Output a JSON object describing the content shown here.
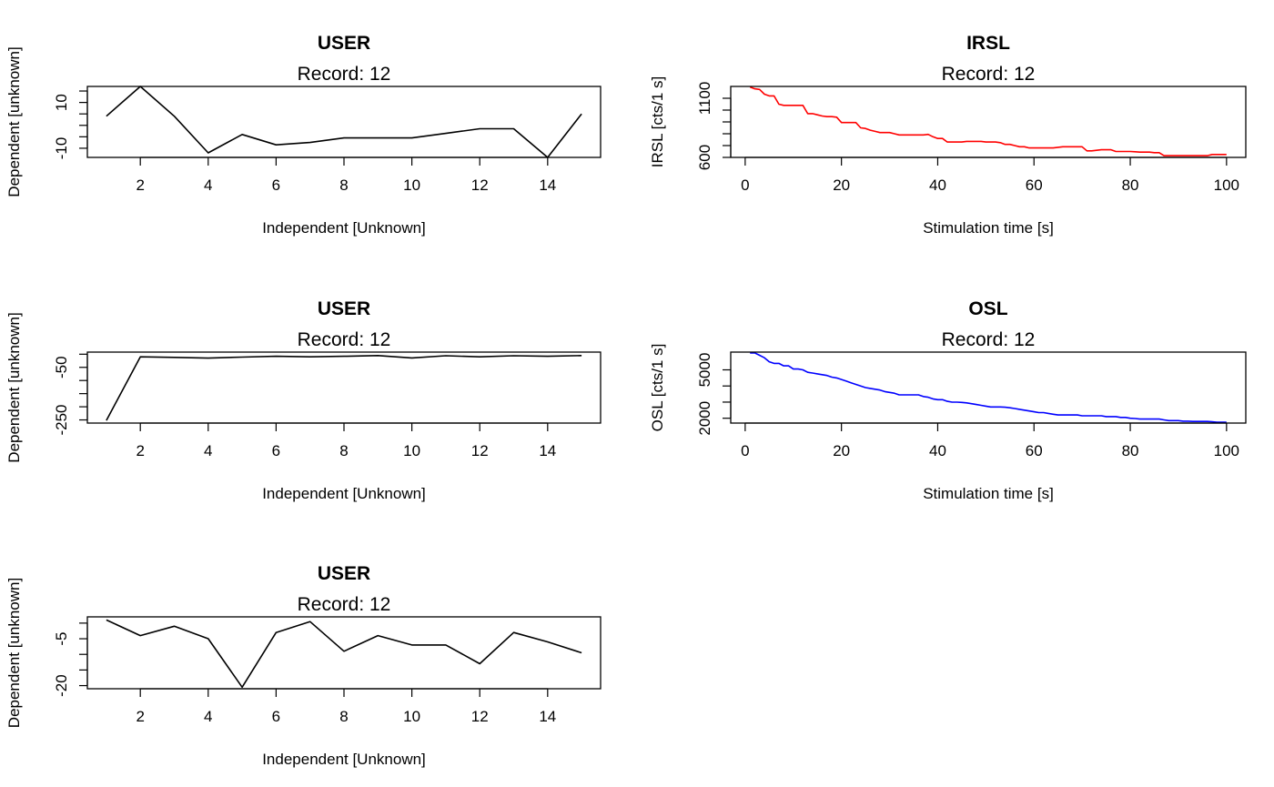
{
  "chart_data": [
    {
      "type": "line",
      "title": "USER",
      "subtitle": "Record: 12",
      "xlabel": "Independent [Unknown]",
      "ylabel": "Dependent [unknown]",
      "xlim": [
        0.44,
        15.56
      ],
      "ylim": [
        -14,
        17
      ],
      "xticks": [
        2,
        4,
        6,
        8,
        10,
        12,
        14
      ],
      "yticks": [
        -10,
        -5,
        0,
        5,
        10,
        15
      ],
      "yticklabels": [
        "-10",
        "",
        "",
        "",
        "10",
        ""
      ],
      "color": "#000000",
      "x": [
        1,
        2,
        3,
        4,
        5,
        6,
        7,
        8,
        9,
        10,
        11,
        12,
        13,
        14,
        15
      ],
      "y": [
        4,
        17,
        4,
        -12,
        -4,
        -8.5,
        -7.5,
        -5.5,
        -5.5,
        -5.5,
        -3.5,
        -1.5,
        -1.5,
        -14,
        5
      ]
    },
    {
      "type": "line",
      "title": "IRSL",
      "subtitle": "Record: 12",
      "xlabel": "Stimulation time [s]",
      "ylabel": "IRSL [cts/1 s]",
      "xlim": [
        -3,
        104
      ],
      "ylim": [
        600,
        1200
      ],
      "xticks": [
        0,
        20,
        40,
        60,
        80,
        100
      ],
      "yticks": [
        600,
        700,
        800,
        900,
        1000,
        1100
      ],
      "yticklabels": [
        "600",
        "",
        "",
        "",
        "",
        "1100"
      ],
      "color": "#ff0000",
      "x": [
        1,
        2,
        3,
        4,
        5,
        6,
        7,
        8,
        9,
        10,
        11,
        12,
        13,
        14,
        15,
        16,
        17,
        18,
        19,
        20,
        21,
        22,
        23,
        24,
        25,
        26,
        27,
        28,
        29,
        30,
        31,
        32,
        33,
        34,
        35,
        36,
        37,
        38,
        39,
        40,
        41,
        42,
        43,
        44,
        45,
        46,
        47,
        48,
        49,
        50,
        51,
        52,
        53,
        54,
        55,
        56,
        57,
        58,
        59,
        60,
        61,
        62,
        63,
        64,
        65,
        66,
        67,
        68,
        69,
        70,
        71,
        72,
        73,
        74,
        75,
        76,
        77,
        78,
        79,
        80,
        81,
        82,
        83,
        84,
        85,
        86,
        87,
        88,
        89,
        90,
        91,
        92,
        93,
        94,
        95,
        96,
        97,
        98,
        99,
        100
      ],
      "y": [
        1195,
        1180,
        1175,
        1135,
        1120,
        1120,
        1050,
        1040,
        1040,
        1040,
        1040,
        1040,
        970,
        970,
        960,
        950,
        945,
        945,
        940,
        895,
        895,
        895,
        895,
        850,
        845,
        830,
        820,
        810,
        810,
        810,
        800,
        790,
        790,
        790,
        790,
        790,
        790,
        795,
        775,
        760,
        760,
        730,
        730,
        730,
        730,
        735,
        735,
        735,
        735,
        730,
        730,
        730,
        725,
        710,
        710,
        700,
        690,
        690,
        680,
        680,
        680,
        680,
        680,
        680,
        685,
        690,
        690,
        690,
        690,
        690,
        655,
        655,
        660,
        665,
        665,
        665,
        650,
        650,
        650,
        650,
        648,
        645,
        645,
        645,
        640,
        640,
        615,
        615,
        615,
        615,
        615,
        615,
        615,
        615,
        615,
        615,
        625,
        625,
        625,
        625
      ]
    },
    {
      "type": "line",
      "title": "USER",
      "subtitle": "Record: 12",
      "xlabel": "Independent [Unknown]",
      "ylabel": "Dependent [unknown]",
      "xlim": [
        0.44,
        15.56
      ],
      "ylim": [
        -262,
        8
      ],
      "xticks": [
        2,
        4,
        6,
        8,
        10,
        12,
        14
      ],
      "yticks": [
        -250,
        -200,
        -150,
        -100,
        -50,
        0
      ],
      "yticklabels": [
        "-250",
        "",
        "",
        "",
        "-50",
        ""
      ],
      "color": "#000000",
      "x": [
        1,
        2,
        3,
        4,
        5,
        6,
        7,
        8,
        9,
        10,
        11,
        12,
        13,
        14,
        15
      ],
      "y": [
        -252,
        -10,
        -12,
        -15,
        -11,
        -8,
        -10,
        -8,
        -5,
        -14,
        -6,
        -10,
        -6,
        -8,
        -5
      ]
    },
    {
      "type": "line",
      "title": "OSL",
      "subtitle": "Record: 12",
      "xlabel": "Stimulation time [s]",
      "ylabel": "OSL [cts/1 s]",
      "xlim": [
        -3,
        104
      ],
      "ylim": [
        1700,
        6100
      ],
      "xticks": [
        0,
        20,
        40,
        60,
        80,
        100
      ],
      "yticks": [
        2000,
        3000,
        4000,
        5000
      ],
      "yticklabels": [
        "2000",
        "",
        "",
        "5000"
      ],
      "color": "#0000ff",
      "x": [
        1,
        2,
        3,
        4,
        5,
        6,
        7,
        8,
        9,
        10,
        11,
        12,
        13,
        14,
        15,
        16,
        17,
        18,
        19,
        20,
        21,
        22,
        23,
        24,
        25,
        26,
        27,
        28,
        29,
        30,
        31,
        32,
        33,
        34,
        35,
        36,
        37,
        38,
        39,
        40,
        41,
        42,
        43,
        44,
        45,
        46,
        47,
        48,
        49,
        50,
        51,
        52,
        53,
        54,
        55,
        56,
        57,
        58,
        59,
        60,
        61,
        62,
        63,
        64,
        65,
        66,
        67,
        68,
        69,
        70,
        71,
        72,
        73,
        74,
        75,
        76,
        77,
        78,
        79,
        80,
        81,
        82,
        83,
        84,
        85,
        86,
        87,
        88,
        89,
        90,
        91,
        92,
        93,
        94,
        95,
        96,
        97,
        98,
        99,
        100
      ],
      "y": [
        6050,
        6050,
        5900,
        5750,
        5500,
        5400,
        5400,
        5250,
        5250,
        5050,
        5050,
        5000,
        4850,
        4800,
        4750,
        4700,
        4650,
        4550,
        4500,
        4400,
        4300,
        4200,
        4100,
        4000,
        3900,
        3850,
        3800,
        3750,
        3650,
        3600,
        3550,
        3450,
        3450,
        3450,
        3450,
        3450,
        3350,
        3300,
        3200,
        3150,
        3150,
        3050,
        3000,
        3000,
        2980,
        2950,
        2900,
        2850,
        2800,
        2750,
        2700,
        2700,
        2700,
        2680,
        2650,
        2600,
        2550,
        2500,
        2450,
        2400,
        2350,
        2350,
        2300,
        2250,
        2200,
        2200,
        2200,
        2200,
        2200,
        2150,
        2150,
        2150,
        2150,
        2150,
        2100,
        2100,
        2100,
        2050,
        2050,
        2000,
        1980,
        1950,
        1950,
        1950,
        1950,
        1950,
        1900,
        1850,
        1850,
        1850,
        1820,
        1820,
        1800,
        1800,
        1800,
        1800,
        1780,
        1750,
        1750,
        1750
      ]
    },
    {
      "type": "line",
      "title": "USER",
      "subtitle": "Record: 12",
      "xlabel": "Independent [Unknown]",
      "ylabel": "Dependent [unknown]",
      "xlim": [
        0.44,
        15.56
      ],
      "ylim": [
        -21,
        2
      ],
      "xticks": [
        2,
        4,
        6,
        8,
        10,
        12,
        14
      ],
      "yticks": [
        -20,
        -15,
        -10,
        -5,
        0
      ],
      "yticklabels": [
        "-20",
        "",
        "",
        "-5",
        ""
      ],
      "color": "#000000",
      "x": [
        1,
        2,
        3,
        4,
        5,
        6,
        7,
        8,
        9,
        10,
        11,
        12,
        13,
        14,
        15
      ],
      "y": [
        1,
        -4,
        -1,
        -5,
        -20.5,
        -3,
        0.5,
        -9,
        -4,
        -7,
        -7,
        -13,
        -3,
        -6,
        -9.5
      ]
    }
  ]
}
